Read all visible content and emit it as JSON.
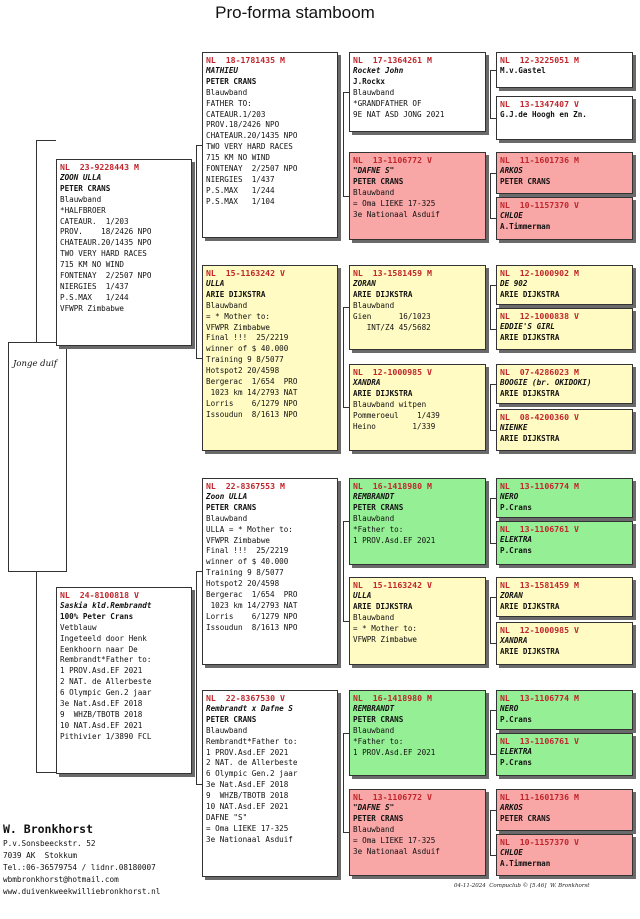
{
  "title": "Pro-forma stamboom",
  "subject_label": "Jonge duif",
  "breeder": {
    "name": "W. Bronkhorst",
    "lines": [
      "P.v.Sonsbeeckstr. 52",
      "7039 AK  Stokkum",
      "Tel.:06-36579754 / lidnr.08180007",
      "wbmbronkhorst@hotmail.com",
      "www.duivenkweekwilliebronkhorst.nl"
    ]
  },
  "footer": "04-11-2024  Compuclub © [5.46]  W. Bronkhorst",
  "pigeons": {
    "p1": {
      "ring": "NL  23-9228443 M",
      "name": "ZOON ULLA",
      "owner": "PETER CRANS",
      "lines": [
        "Blauwband",
        "*HALFBROER",
        "CATEAUR.  1/203",
        "PROV.    18/2426 NPO",
        "CHATEAUR.20/1435 NPO",
        "TWO VERY HARD RACES",
        "715 KM NO WIND",
        "FONTENAY  2/2507 NPO",
        "NIERGIES  1/437",
        "P.S.MAX   1/244",
        "VFWPR Zimbabwe"
      ]
    },
    "p2": {
      "ring": "NL  24-8100818 V",
      "name": "Saskia kld.Rembrandt",
      "owner": "100% Peter Crans",
      "lines": [
        "Vetblauw",
        "Ingeteeld door Henk",
        "Eenkhoorn naar De",
        "Rembrandt*Father to:",
        "1 PROV.Asd.EF 2021",
        "2 NAT. de Allerbeste",
        "6 Olympic Gen.2 jaar",
        "3e Nat.Asd.EF 2018",
        "9  WHZB/TBOTB 2018",
        "10 NAT.Asd.EF 2021",
        "Pithivier 1/3890 FCL"
      ]
    },
    "gp1": {
      "ring": "NL  18-1781435 M",
      "name": "MATHIEU",
      "owner": "PETER CRANS",
      "lines": [
        "Blauwband",
        "FATHER TO:",
        "CATEAUR.1/203",
        "PROV.18/2426 NPO",
        "CHATEAUR.20/1435 NPO",
        "TWO VERY HARD RACES",
        "715 KM NO WIND",
        "FONTENAY  2/2507 NPO",
        "NIERGIES  1/437",
        "P.S.MAX   1/244",
        "P.S.MAX   1/104"
      ]
    },
    "gp2": {
      "ring": "NL  15-1163242 V",
      "name": "ULLA",
      "owner": "ARIE DIJKSTRA",
      "lines": [
        "Blauwband",
        "= * Mother to:",
        "VFWPR Zimbabwe",
        "Final !!!  25/2219",
        "winner of $ 40.000",
        "Training 9 8/5077",
        "Hotspot2 20/4598",
        "Bergerac  1/654  PRO",
        " 1023 km 14/2793 NAT",
        "Lorris    6/1279 NPO",
        "Issoudun  8/1613 NPO"
      ]
    },
    "gp3": {
      "ring": "NL  22-8367553 M",
      "name": "Zoon ULLA",
      "owner": "PETER CRANS",
      "lines": [
        "Blauwband",
        "ULLA = * Mother to:",
        "VFWPR Zimbabwe",
        "Final !!!  25/2219",
        "winner of $ 40.000",
        "Training 9 8/5077",
        "Hotspot2 20/4598",
        "Bergerac  1/654  PRO",
        " 1023 km 14/2793 NAT",
        "Lorris    6/1279 NPO",
        "Issoudun  8/1613 NPO"
      ]
    },
    "gp4": {
      "ring": "NL  22-8367530 V",
      "name": "Rembrandt x Dafne S",
      "owner": "PETER CRANS",
      "lines": [
        "Blauwband",
        "Rembrandt*Father to:",
        "1 PROV.Asd.EF 2021",
        "2 NAT. de Allerbeste",
        "6 Olympic Gen.2 jaar",
        "3e Nat.Asd.EF 2018",
        "9  WHZB/TBOTB 2018",
        "10 NAT.Asd.EF 2021",
        "DAFNE \"S\"",
        "= Oma LIEKE 17-325",
        "3e Nationaal Asduif"
      ]
    },
    "ggp1": {
      "ring": "NL  17-1364261 M",
      "name": "Rocket John",
      "owner": "J.Rockx",
      "lines": [
        "Blauwband",
        "*GRANDFATHER OF",
        "9E NAT ASD JONG 2021"
      ]
    },
    "ggp2": {
      "ring": "NL  13-1106772 V",
      "name": "\"DAFNE S\"",
      "owner": "PETER CRANS",
      "lines": [
        "Blauwband",
        "= Oma LIEKE 17-325",
        "3e Nationaal Asduif"
      ]
    },
    "ggp3": {
      "ring": "NL  13-1581459 M",
      "name": "ZORAN",
      "owner": "ARIE DIJKSTRA",
      "lines": [
        "Blauwband",
        "Gien      16/1023",
        "   INT/Z4 45/5682"
      ]
    },
    "ggp4": {
      "ring": "NL  12-1000985 V",
      "name": "XANDRA",
      "owner": "ARIE DIJKSTRA",
      "lines": [
        "Blauwband witpen",
        "Pommeroeul    1/439",
        "Heino        1/339"
      ]
    },
    "ggp5": {
      "ring": "NL  16-1418980 M",
      "name": "REMBRANDT",
      "owner": "PETER CRANS",
      "lines": [
        "Blauwband",
        "*Father to:",
        "1 PROV.Asd.EF 2021"
      ]
    },
    "ggp6": {
      "ring": "NL  15-1163242 V",
      "name": "ULLA",
      "owner": "ARIE DIJKSTRA",
      "lines": [
        "Blauwband",
        "= * Mother to:",
        "VFWPR Zimbabwe"
      ]
    },
    "ggp7": {
      "ring": "NL  16-1418980 M",
      "name": "REMBRANDT",
      "owner": "PETER CRANS",
      "lines": [
        "Blauwband",
        "*Father to:",
        "1 PROV.Asd.EF 2021"
      ]
    },
    "ggp8": {
      "ring": "NL  13-1106772 V",
      "name": "\"DAFNE S\"",
      "owner": "PETER CRANS",
      "lines": [
        "Blauwband",
        "= Oma LIEKE 17-325",
        "3e Nationaal Asduif"
      ]
    },
    "g1": {
      "ring": "NL  12-3225051 M",
      "name": "",
      "owner": "M.v.Gastel",
      "lines": []
    },
    "g2": {
      "ring": "NL  13-1347407 V",
      "name": "",
      "owner": "G.J.de Hoogh en Zn.",
      "lines": []
    },
    "g3": {
      "ring": "NL  11-1601736 M",
      "name": "ARKOS",
      "owner": "PETER CRANS",
      "lines": []
    },
    "g4": {
      "ring": "NL  10-1157370 V",
      "name": "CHLOE",
      "owner": "A.Timmerman",
      "lines": []
    },
    "g5": {
      "ring": "NL  12-1000902 M",
      "name": "DE 902",
      "owner": "ARIE DIJKSTRA",
      "lines": []
    },
    "g6": {
      "ring": "NL  12-1000838 V",
      "name": "EDDIE'S GIRL",
      "owner": "ARIE DIJKSTRA",
      "lines": []
    },
    "g7": {
      "ring": "NL  07-4286023 M",
      "name": "BOOGIE (br. OKIDOKI)",
      "owner": "ARIE DIJKSTRA",
      "lines": []
    },
    "g8": {
      "ring": "NL  08-4200360 V",
      "name": "NIENKE",
      "owner": "ARIE DIJKSTRA",
      "lines": []
    },
    "g9": {
      "ring": "NL  13-1106774 M",
      "name": "NERO",
      "owner": "P.Crans",
      "lines": []
    },
    "g10": {
      "ring": "NL  13-1106761 V",
      "name": "ELEKTRA",
      "owner": "P.Crans",
      "lines": []
    },
    "g11": {
      "ring": "NL  13-1581459 M",
      "name": "ZORAN",
      "owner": "ARIE DIJKSTRA",
      "lines": []
    },
    "g12": {
      "ring": "NL  12-1000985 V",
      "name": "XANDRA",
      "owner": "ARIE DIJKSTRA",
      "lines": []
    },
    "g13": {
      "ring": "NL  13-1106774 M",
      "name": "NERO",
      "owner": "P.Crans",
      "lines": []
    },
    "g14": {
      "ring": "NL  13-1106761 V",
      "name": "ELEKTRA",
      "owner": "P.Crans",
      "lines": []
    },
    "g15": {
      "ring": "NL  11-1601736 M",
      "name": "ARKOS",
      "owner": "PETER CRANS",
      "lines": []
    },
    "g16": {
      "ring": "NL  10-1157370 V",
      "name": "CHLOE",
      "owner": "A.Timmerman",
      "lines": []
    }
  },
  "colors": {
    "white": "#ffffff",
    "yellow": "#fffbc3",
    "red": "#f8a6a6",
    "green": "#95ef95",
    "ring_red": "#c0262c"
  }
}
